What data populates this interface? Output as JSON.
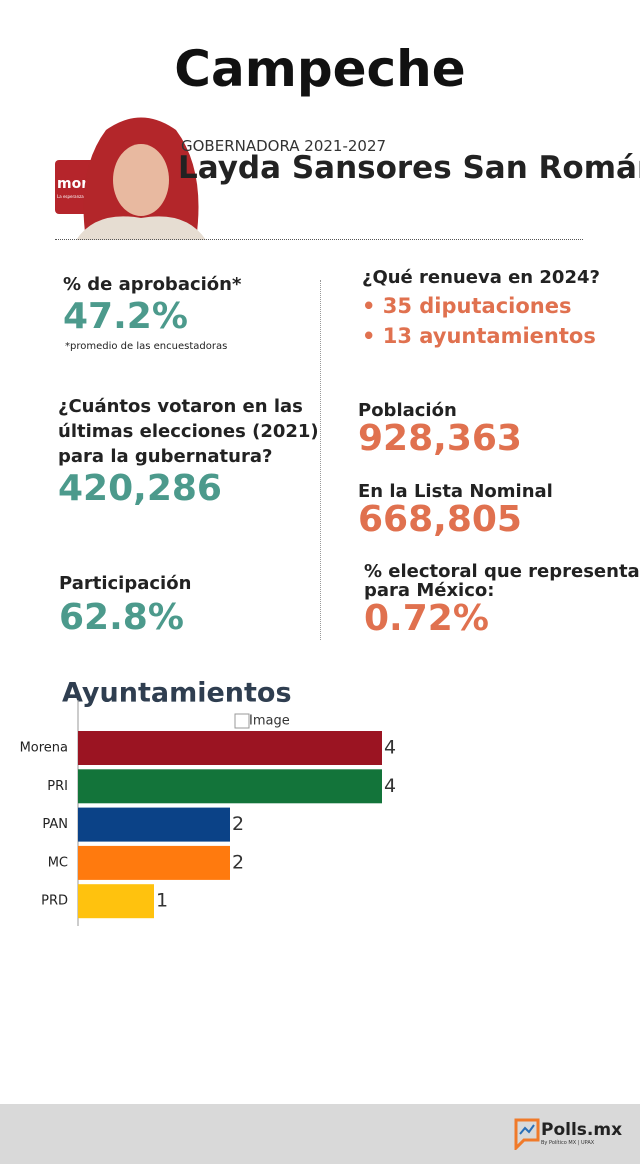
{
  "header": {
    "title": "Campeche",
    "role": "GOBERNADORA 2021-2027",
    "name": "Layda Sansores San Román",
    "logo": {
      "name": "morena",
      "tagline": "La esperanza de México"
    }
  },
  "stats": {
    "approval": {
      "label": "% de aprobación*",
      "value": "47.2%",
      "note": "*promedio de las encuestadoras"
    },
    "renews": {
      "label": "¿Qué renueva en 2024?",
      "items": [
        "• 35 diputaciones",
        "• 13 ayuntamientos"
      ]
    },
    "voters": {
      "lines": [
        "¿Cuántos votaron en las",
        "últimas elecciones (2021)",
        "para la gubernatura?"
      ],
      "value": "420,286"
    },
    "population": {
      "label": "Población",
      "value": "928,363"
    },
    "nominal": {
      "label": "En la Lista Nominal",
      "value": "668,805"
    },
    "participation": {
      "label": "Participación",
      "value": "62.8%"
    },
    "share": {
      "lines": [
        "% electoral que representa",
        "para México:"
      ],
      "value": "0.72%"
    }
  },
  "image_alt": "Image",
  "chart_data": {
    "type": "bar",
    "orientation": "horizontal",
    "title": "Ayuntamientos",
    "categories": [
      "Morena",
      "PRI",
      "PAN",
      "MC",
      "PRD"
    ],
    "values": [
      4,
      4,
      2,
      2,
      1
    ],
    "colors": [
      "#9b1422",
      "#13743a",
      "#0b4287",
      "#ff7a0e",
      "#ffc20e"
    ]
  },
  "footer": {
    "brand": "Polls.mx",
    "byline": "By Político MX | UPAX"
  }
}
